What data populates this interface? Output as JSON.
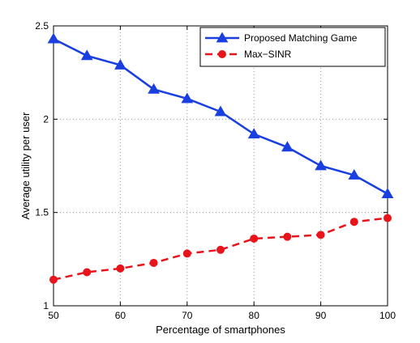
{
  "chart_data": {
    "type": "line",
    "xlabel": "Percentage of smartphones",
    "ylabel": "Average utility per user",
    "xlim": [
      50,
      100
    ],
    "ylim": [
      1,
      2.5
    ],
    "xticks": [
      "50",
      "60",
      "70",
      "80",
      "90",
      "100"
    ],
    "yticks": [
      "1",
      "1.5",
      "2",
      "2.5"
    ],
    "grid": true,
    "legend_position": "top-right",
    "x": [
      50,
      55,
      60,
      65,
      70,
      75,
      80,
      85,
      90,
      95,
      100
    ],
    "series": [
      {
        "name": "Proposed Matching Game",
        "color": "#1a3fe0",
        "line_style": "solid",
        "marker": "triangle",
        "values": [
          2.43,
          2.34,
          2.29,
          2.16,
          2.11,
          2.04,
          1.92,
          1.85,
          1.75,
          1.7,
          1.6
        ]
      },
      {
        "name": "Max−SINR",
        "color": "#e8141b",
        "line_style": "dashed",
        "marker": "circle",
        "values": [
          1.14,
          1.18,
          1.2,
          1.23,
          1.28,
          1.3,
          1.36,
          1.37,
          1.38,
          1.45,
          1.47
        ]
      }
    ]
  }
}
